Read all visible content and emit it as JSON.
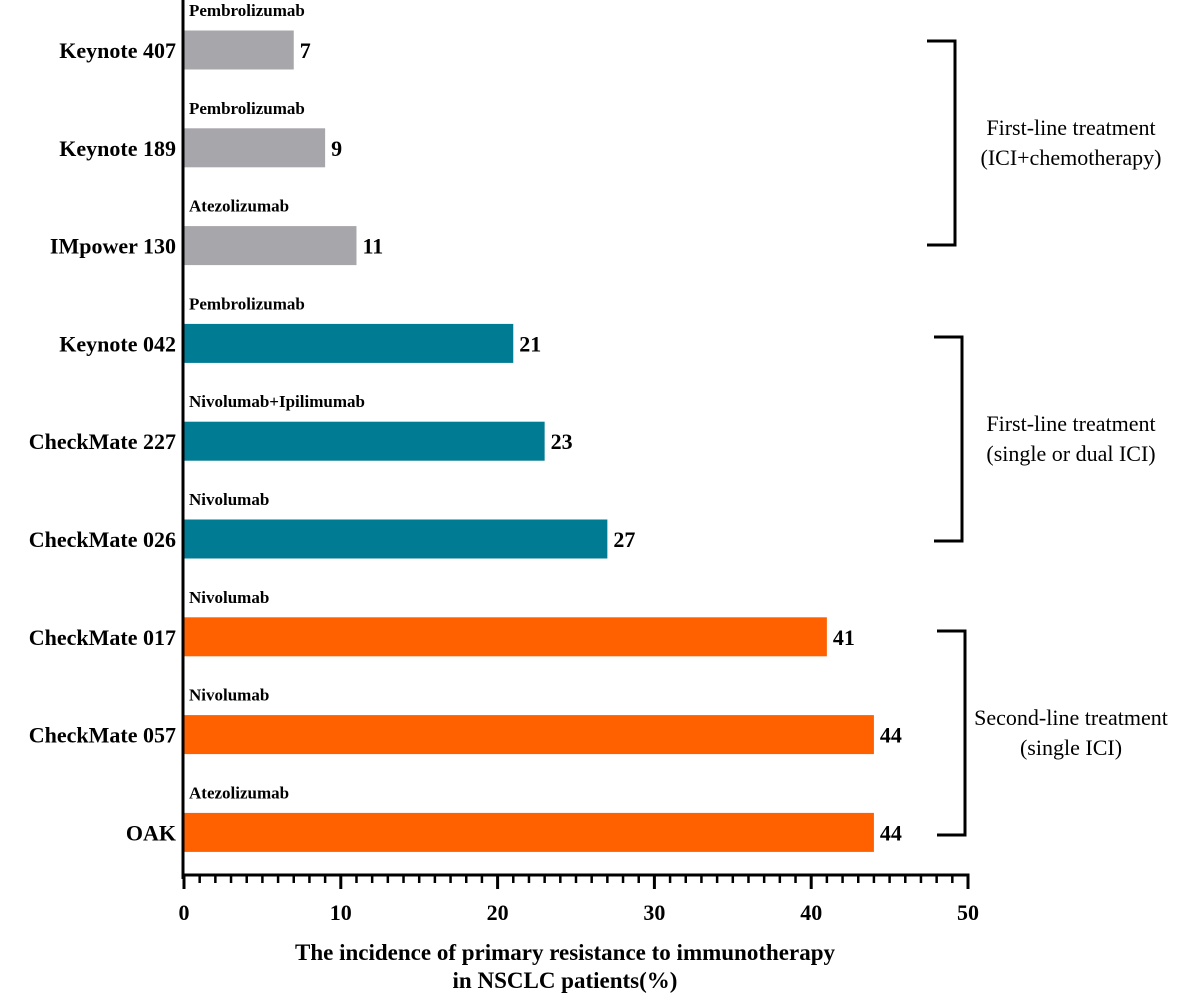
{
  "chart_data": {
    "type": "bar",
    "orientation": "horizontal",
    "categories": [
      "Keynote 407",
      "Keynote 189",
      "IMpower 130",
      "Keynote 042",
      "CheckMate 227",
      "CheckMate 026",
      "CheckMate 017",
      "CheckMate 057",
      "OAK"
    ],
    "drugs": [
      "Pembrolizumab",
      "Pembrolizumab",
      "Atezolizumab",
      "Pembrolizumab",
      "Nivolumab+Ipilimumab",
      "Nivolumab",
      "Nivolumab",
      "Nivolumab",
      "Atezolizumab"
    ],
    "values": [
      7,
      9,
      11,
      21,
      23,
      27,
      41,
      44,
      44
    ],
    "value_labels": [
      "7",
      "9",
      "11",
      "21",
      "23",
      "27",
      "41",
      "44",
      "44"
    ],
    "bar_colors": [
      "#a7a6ab",
      "#a7a6ab",
      "#a7a6ab",
      "#007b94",
      "#007b94",
      "#007b94",
      "#ff6100",
      "#ff6100",
      "#ff6100"
    ],
    "groups": [
      {
        "lines": [
          "First-line treatment",
          "(ICI+chemotherapy)"
        ],
        "from": 0,
        "to": 2
      },
      {
        "lines": [
          "First-line treatment",
          "(single or dual ICI)"
        ],
        "from": 3,
        "to": 5
      },
      {
        "lines": [
          "Second-line treatment",
          "(single ICI)"
        ],
        "from": 6,
        "to": 8
      }
    ],
    "xlabel_lines": [
      "The incidence of primary resistance to immunotherapy",
      "in NSCLC patients(%)"
    ],
    "ylabel": "",
    "title": "",
    "xlim": [
      0,
      50
    ],
    "xticks": [
      0,
      10,
      20,
      30,
      40,
      50
    ],
    "xtick_labels": [
      "0",
      "10",
      "20",
      "30",
      "40",
      "50"
    ],
    "minor_tick_step": 1,
    "grid": false,
    "legend": "none"
  }
}
